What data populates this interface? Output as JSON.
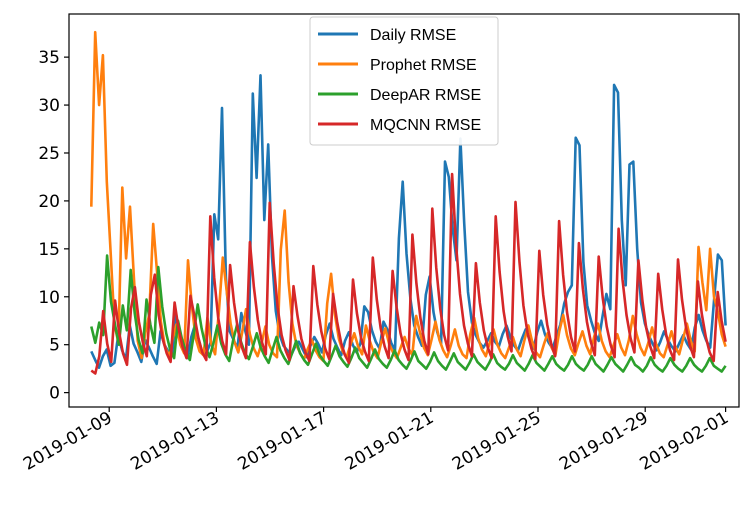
{
  "chart_data": {
    "type": "line",
    "title": "",
    "xlabel": "",
    "ylabel": "",
    "x_start": "2019-01-08 08:00",
    "x_end": "2019-02-01 00:00",
    "xlim": [
      "2019-01-07 12:00",
      "2019-02-01 12:00"
    ],
    "ylim": [
      -1.5,
      39.5
    ],
    "xticks": [
      "2019-01-09",
      "2019-01-13",
      "2019-01-17",
      "2019-01-21",
      "2019-01-25",
      "2019-01-29",
      "2019-02-01"
    ],
    "yticks": [
      0,
      5,
      10,
      15,
      20,
      25,
      30,
      35
    ],
    "grid": false,
    "legend": "top-center",
    "series": [
      {
        "name": "Daily RMSE",
        "color": "#1f77b4",
        "values": [
          4.3,
          3.4,
          2.6,
          3.8,
          4.5,
          2.8,
          3.1,
          6.0,
          4.4,
          3.5,
          7.0,
          5.1,
          4.2,
          3.2,
          5.5,
          4.7,
          3.8,
          3.0,
          6.4,
          5.0,
          4.3,
          3.9,
          8.2,
          6.0,
          4.5,
          3.6,
          5.8,
          7.1,
          5.4,
          4.0,
          4.2,
          5.2,
          18.6,
          16.0,
          29.7,
          12.0,
          6.4,
          5.5,
          4.6,
          8.3,
          6.5,
          5.0,
          31.2,
          22.4,
          33.1,
          18.0,
          25.9,
          14.2,
          8.5,
          6.0,
          4.9,
          4.4,
          3.9,
          4.8,
          5.3,
          4.5,
          3.7,
          4.9,
          5.8,
          5.1,
          4.2,
          6.0,
          7.2,
          5.6,
          4.7,
          3.9,
          5.4,
          6.3,
          5.0,
          4.2,
          5.1,
          9.0,
          8.4,
          6.5,
          5.3,
          4.6,
          7.4,
          6.6,
          5.2,
          4.4,
          16.1,
          22.0,
          14.5,
          9.8,
          7.0,
          5.8,
          4.9,
          10.2,
          12.1,
          8.4,
          6.3,
          5.1,
          24.1,
          22.5,
          17.1,
          13.8,
          26.5,
          17.7,
          10.5,
          7.3,
          6.0,
          5.2,
          4.7,
          5.4,
          6.2,
          5.3,
          4.8,
          6.1,
          7.0,
          5.8,
          4.9,
          4.4,
          5.6,
          6.6,
          5.5,
          4.6,
          6.3,
          7.5,
          6.1,
          5.2,
          4.6,
          5.9,
          7.1,
          9.3,
          10.5,
          11.2,
          26.6,
          25.8,
          13.6,
          9.1,
          7.5,
          6.2,
          5.4,
          8.0,
          10.3,
          8.7,
          32.1,
          31.3,
          18.0,
          11.2,
          23.8,
          24.1,
          15.0,
          9.4,
          7.2,
          6.0,
          5.1,
          4.4,
          5.3,
          6.4,
          5.5,
          4.8,
          4.3,
          5.2,
          6.0,
          5.1,
          4.5,
          6.8,
          8.1,
          6.5,
          5.4,
          4.7,
          9.7,
          14.4,
          13.8,
          7.0
        ]
      },
      {
        "name": "Prophet RMSE",
        "color": "#ff7f0e",
        "values": [
          19.4,
          37.6,
          30.0,
          35.2,
          22.0,
          14.5,
          7.1,
          5.2,
          21.4,
          14.0,
          19.4,
          12.0,
          5.4,
          3.6,
          6.3,
          8.2,
          17.6,
          12.5,
          7.4,
          4.9,
          3.7,
          5.6,
          7.1,
          5.0,
          4.1,
          13.8,
          9.0,
          5.6,
          4.3,
          3.9,
          7.8,
          5.1,
          4.0,
          8.6,
          14.1,
          10.6,
          7.2,
          5.3,
          4.2,
          6.3,
          8.7,
          6.1,
          4.6,
          3.8,
          5.1,
          6.9,
          5.0,
          4.1,
          3.7,
          14.9,
          19.0,
          11.5,
          7.2,
          5.0,
          4.1,
          3.5,
          4.6,
          5.5,
          4.4,
          3.7,
          3.3,
          9.3,
          12.4,
          8.1,
          5.6,
          4.3,
          3.7,
          5.0,
          6.2,
          4.8,
          4.0,
          7.0,
          5.4,
          4.2,
          3.6,
          5.3,
          6.7,
          5.1,
          4.2,
          3.6,
          4.7,
          5.8,
          4.6,
          3.9,
          8.0,
          6.2,
          4.7,
          3.9,
          5.6,
          7.4,
          5.5,
          4.4,
          3.7,
          5.0,
          6.6,
          4.9,
          4.0,
          3.6,
          6.1,
          7.8,
          5.7,
          4.5,
          3.8,
          5.2,
          6.6,
          5.0,
          4.1,
          3.6,
          4.7,
          5.8,
          4.5,
          3.8,
          5.5,
          7.0,
          5.3,
          4.2,
          3.7,
          5.0,
          6.2,
          4.7,
          3.9,
          6.4,
          8.1,
          6.0,
          4.6,
          3.9,
          5.2,
          6.4,
          4.9,
          4.0,
          5.8,
          7.2,
          5.4,
          4.3,
          3.7,
          4.9,
          6.1,
          4.7,
          3.9,
          5.5,
          8.0,
          6.1,
          4.7,
          3.9,
          5.2,
          6.8,
          5.1,
          4.1,
          3.7,
          5.0,
          6.4,
          4.8,
          4.0,
          5.6,
          7.2,
          5.4,
          4.3,
          15.2,
          11.5,
          8.6,
          15.0,
          10.0,
          8.4,
          6.1,
          4.8
        ]
      },
      {
        "name": "DeepAR RMSE",
        "color": "#2ca02c",
        "values": [
          6.9,
          5.2,
          7.3,
          6.0,
          14.3,
          9.5,
          7.1,
          5.0,
          9.1,
          6.5,
          12.8,
          8.3,
          5.5,
          4.1,
          9.7,
          7.1,
          5.2,
          13.1,
          9.0,
          6.2,
          4.5,
          3.6,
          7.5,
          5.6,
          4.3,
          3.4,
          6.1,
          9.2,
          6.7,
          4.8,
          3.7,
          5.2,
          7.0,
          5.1,
          4.0,
          3.3,
          5.5,
          7.1,
          5.3,
          4.1,
          3.5,
          4.8,
          6.2,
          4.7,
          3.8,
          3.1,
          4.5,
          5.8,
          4.4,
          3.6,
          3.0,
          4.2,
          5.4,
          4.1,
          3.4,
          2.9,
          4.0,
          5.1,
          3.9,
          3.3,
          2.8,
          3.8,
          4.9,
          3.8,
          3.2,
          2.7,
          3.6,
          4.7,
          3.6,
          3.1,
          2.6,
          3.5,
          4.5,
          3.5,
          3.0,
          2.6,
          3.4,
          4.4,
          3.4,
          2.9,
          2.5,
          3.3,
          4.3,
          3.3,
          2.9,
          2.5,
          3.2,
          4.2,
          3.3,
          2.8,
          2.4,
          3.2,
          4.1,
          3.2,
          2.8,
          2.4,
          3.1,
          4.0,
          3.2,
          2.8,
          2.4,
          3.1,
          4.0,
          3.1,
          2.7,
          2.4,
          3.0,
          3.9,
          3.1,
          2.7,
          2.3,
          3.0,
          3.9,
          3.1,
          2.7,
          2.3,
          3.0,
          3.8,
          3.0,
          2.6,
          2.3,
          2.9,
          3.8,
          3.0,
          2.6,
          2.3,
          2.9,
          3.8,
          3.0,
          2.6,
          2.2,
          2.9,
          3.7,
          3.0,
          2.6,
          2.2,
          2.9,
          3.7,
          2.9,
          2.6,
          2.2,
          2.8,
          3.7,
          2.9,
          2.5,
          2.2,
          2.8,
          3.6,
          2.9,
          2.5,
          2.2,
          2.8,
          3.6,
          2.9,
          2.5,
          2.2,
          2.8,
          3.6,
          2.8,
          2.5,
          2.2,
          2.8
        ]
      },
      {
        "name": "MQCNN RMSE",
        "color": "#d62728",
        "values": [
          2.3,
          2.0,
          3.8,
          8.5,
          5.1,
          3.2,
          9.6,
          6.3,
          4.1,
          2.9,
          8.8,
          11.0,
          7.4,
          5.2,
          3.8,
          10.2,
          12.3,
          8.1,
          5.6,
          4.1,
          3.2,
          9.4,
          6.7,
          4.8,
          3.6,
          10.1,
          8.0,
          5.7,
          4.2,
          3.4,
          18.4,
          12.0,
          7.8,
          5.4,
          4.0,
          13.3,
          9.4,
          6.5,
          4.7,
          3.6,
          15.7,
          11.0,
          7.6,
          5.3,
          4.0,
          19.8,
          13.5,
          8.9,
          6.0,
          4.4,
          3.4,
          11.1,
          8.0,
          5.6,
          4.2,
          3.3,
          13.2,
          9.2,
          6.4,
          4.6,
          3.5,
          10.3,
          7.4,
          5.2,
          3.9,
          3.1,
          11.8,
          8.3,
          5.8,
          4.3,
          3.3,
          14.1,
          9.7,
          6.7,
          4.8,
          3.6,
          12.7,
          8.9,
          6.2,
          4.5,
          3.4,
          16.5,
          11.4,
          7.8,
          5.4,
          4.0,
          19.2,
          13.1,
          8.8,
          6.0,
          4.4,
          22.8,
          15.5,
          10.3,
          7.0,
          5.1,
          3.8,
          13.5,
          9.4,
          6.5,
          4.7,
          3.6,
          18.4,
          12.6,
          8.5,
          5.9,
          4.3,
          19.9,
          13.6,
          9.1,
          6.3,
          4.6,
          3.5,
          14.8,
          10.2,
          7.1,
          5.1,
          3.8,
          17.9,
          12.3,
          8.4,
          5.8,
          4.3,
          15.6,
          10.8,
          7.4,
          5.3,
          3.9,
          14.2,
          9.9,
          6.9,
          5.0,
          3.7,
          17.1,
          11.8,
          8.1,
          5.7,
          4.2,
          13.8,
          9.6,
          6.7,
          4.8,
          3.6,
          12.4,
          8.7,
          6.1,
          4.4,
          3.4,
          13.9,
          9.7,
          6.8,
          4.9,
          3.7,
          11.6,
          8.2,
          5.8,
          4.2,
          3.3,
          10.5,
          7.5,
          5.3
        ]
      }
    ]
  }
}
